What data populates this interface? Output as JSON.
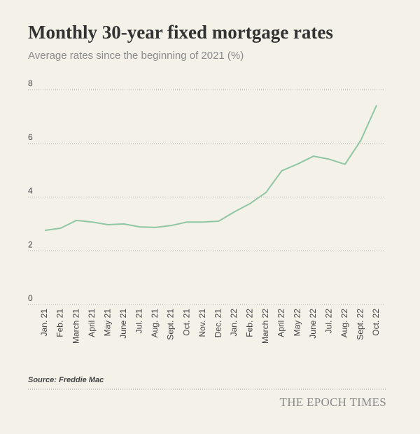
{
  "chart_data": {
    "type": "line",
    "title": "Monthly 30-year fixed mortgage rates",
    "subtitle": "Average rates since the beginning of 2021 (%)",
    "source": "Source: Freddie Mac",
    "categories": [
      "Jan. 21",
      "Feb. 21",
      "March 21",
      "April 21",
      "May 21",
      "June 21",
      "Jul. 21",
      "Aug. 21",
      "Sept. 21",
      "Oct. 21",
      "Nov. 21",
      "Dec. 21",
      "Jan. 22",
      "Feb. 22",
      "March 22",
      "April 22",
      "May 22",
      "June 22",
      "Jul. 22",
      "Aug. 22",
      "Sept. 22",
      "Oct. 22"
    ],
    "values": [
      2.76,
      2.84,
      3.13,
      3.07,
      2.97,
      3.0,
      2.89,
      2.87,
      2.94,
      3.07,
      3.07,
      3.1,
      3.45,
      3.76,
      4.17,
      4.98,
      5.23,
      5.52,
      5.41,
      5.22,
      6.11,
      7.42
    ],
    "color": "#8fc6a4",
    "ylim": [
      0,
      8
    ],
    "yticks": [
      0,
      2,
      4,
      6,
      8
    ],
    "grid": true
  },
  "brand": "THE EPOCH TIMES"
}
